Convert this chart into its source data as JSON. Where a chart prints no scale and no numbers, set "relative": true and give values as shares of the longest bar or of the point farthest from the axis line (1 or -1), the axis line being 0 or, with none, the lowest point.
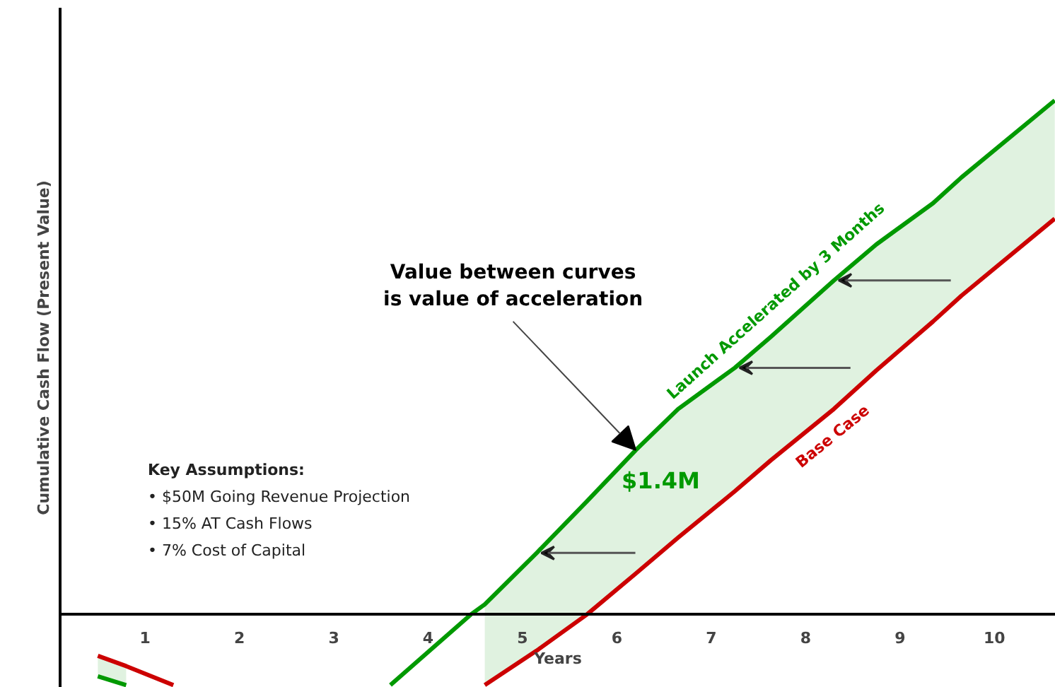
{
  "chart_data": {
    "type": "line",
    "relative": true,
    "xlabel": "Years",
    "ylabel": "Cumulative Cash Flow (Present Value)",
    "xlim": [
      0.1,
      10.65
    ],
    "xticks": [
      1,
      2,
      3,
      4,
      5,
      6,
      7,
      8,
      9,
      10
    ],
    "x": [
      0.5,
      0.8,
      1.3,
      2.2,
      3.6,
      4.45,
      4.6,
      5.15,
      5.68,
      6.2,
      6.65,
      7.25,
      7.63,
      8.3,
      8.75,
      9.35,
      9.65,
      10.64
    ],
    "series": [
      {
        "name": "Launch Accelerated by 3 Months",
        "color": "#009900",
        "values": [
          -0.12,
          -0.137,
          null,
          null,
          -0.137,
          0,
          0.02,
          0.12,
          0.22,
          0.32,
          0.4,
          0.48,
          0.54,
          0.65,
          0.72,
          0.8,
          0.85,
          1.0
        ],
        "lower": [
          -0.08,
          -0.1,
          null,
          null,
          null,
          null,
          -0.137,
          -0.07,
          0,
          0.08,
          0.15,
          0.24,
          0.3,
          0.4,
          0.475,
          0.57,
          0.62,
          0.77
        ],
        "upper": [
          -0.12,
          -0.137,
          null,
          null,
          null,
          null,
          0.02,
          0.12,
          0.22,
          0.32,
          0.4,
          0.48,
          0.54,
          0.65,
          0.72,
          0.8,
          0.85,
          1.0
        ]
      },
      {
        "name": "Base Case",
        "color": "#cc0000",
        "values": [
          -0.08,
          -0.1,
          -0.137,
          null,
          null,
          null,
          -0.137,
          -0.07,
          0,
          0.08,
          0.15,
          0.24,
          0.3,
          0.4,
          0.475,
          0.57,
          0.62,
          0.77
        ]
      }
    ],
    "annotations": [
      {
        "text": "Value between curves\nis value of acceleration",
        "x": 6.2,
        "y": 0.32
      },
      {
        "text": "$1.4M",
        "x": 6.2,
        "y": 0.32
      },
      "Key Assumptions:",
      "• $50M Going Revenue Projection",
      "• 15% AT Cash Flows",
      "• 7% Cost of Capital"
    ]
  }
}
